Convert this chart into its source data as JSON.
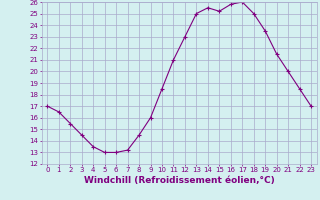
{
  "x": [
    0,
    1,
    2,
    3,
    4,
    5,
    6,
    7,
    8,
    9,
    10,
    11,
    12,
    13,
    14,
    15,
    16,
    17,
    18,
    19,
    20,
    21,
    22,
    23
  ],
  "y": [
    17.0,
    16.5,
    15.5,
    14.5,
    13.5,
    13.0,
    13.0,
    13.2,
    14.5,
    16.0,
    18.5,
    21.0,
    23.0,
    25.0,
    25.5,
    25.2,
    25.8,
    26.0,
    25.0,
    23.5,
    21.5,
    20.0,
    18.5,
    17.0
  ],
  "xlabel": "Windchill (Refroidissement éolien,°C)",
  "xlim": [
    -0.5,
    23.5
  ],
  "ylim": [
    12,
    26
  ],
  "yticks": [
    12,
    13,
    14,
    15,
    16,
    17,
    18,
    19,
    20,
    21,
    22,
    23,
    24,
    25,
    26
  ],
  "xticks": [
    0,
    1,
    2,
    3,
    4,
    5,
    6,
    7,
    8,
    9,
    10,
    11,
    12,
    13,
    14,
    15,
    16,
    17,
    18,
    19,
    20,
    21,
    22,
    23
  ],
  "line_color": "#800080",
  "marker": "+",
  "bg_color": "#d4f0f0",
  "grid_color": "#aaaacc",
  "tick_label_color": "#800080",
  "label_color": "#800080",
  "tick_fontsize": 5,
  "label_fontsize": 6.5
}
